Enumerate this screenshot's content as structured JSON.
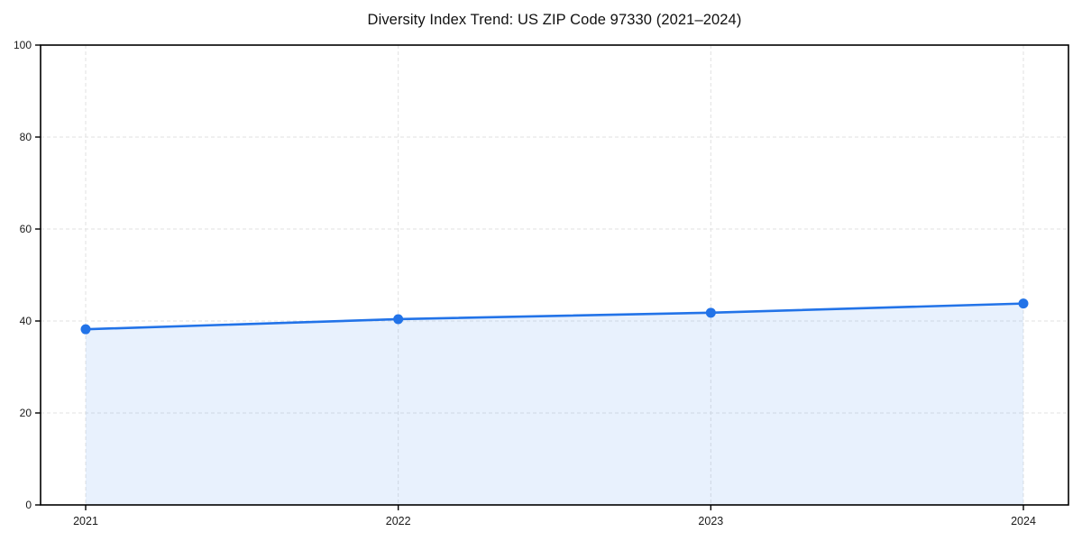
{
  "page": {
    "background": "#ffffff"
  },
  "chart_data": {
    "type": "line",
    "variant": "line-with-area-fill-and-markers",
    "title": "Diversity Index Trend: US ZIP Code 97330 (2021–2024)",
    "categories": [
      "2021",
      "2022",
      "2023",
      "2024"
    ],
    "series": [
      {
        "name": "Diversity Index",
        "values": [
          38.2,
          40.4,
          41.8,
          43.8
        ]
      }
    ],
    "xlabel": "",
    "ylabel": "",
    "ylim": [
      0,
      100
    ],
    "yticks": [
      0,
      20,
      40,
      60,
      80,
      100
    ],
    "grid": "dashed both axes",
    "legend_position": "none",
    "colors": {
      "line": "#2273e8",
      "marker": "#2273e8",
      "area_fill": "rgba(34,115,232,0.10)",
      "grid": "#e2e2e2",
      "spine": "#000000",
      "tick_label": "#1a1a1a",
      "title": "#111111"
    }
  }
}
